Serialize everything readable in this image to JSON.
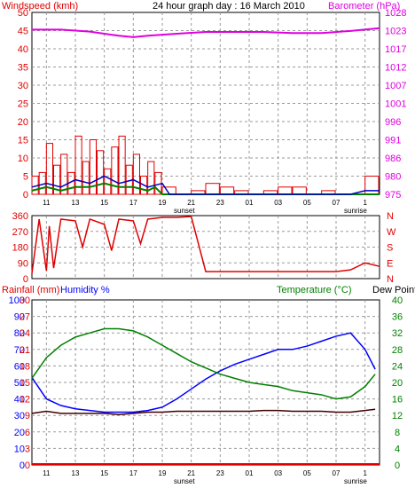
{
  "header": {
    "windspeed_label": "Windspeed (kmh)",
    "title": "24 hour graph day : 16 March 2010",
    "barometer_label": "Barometer (hPa)"
  },
  "lower_header": {
    "rainfall_label": "Rainfall (mm)",
    "humidity_label": "Humidity %",
    "temperature_label": "Temperature (°C)",
    "dewpoint_label": "Dew Point"
  },
  "x_ticks": [
    "11",
    "13",
    "15",
    "17",
    "19",
    "21",
    "23",
    "01",
    "03",
    "05",
    "07",
    "1"
  ],
  "markers": {
    "sunset": "sunset",
    "sunrise": "sunrise"
  },
  "colors": {
    "wind": "#e00000",
    "barometer": "#e000e0",
    "gust_bars": "#e00000",
    "avg_wind": "#0000c0",
    "green": "#008000",
    "humidity": "#0000ff",
    "temperature": "#008000",
    "dewpoint": "#400000",
    "grid": "#9a9a9a"
  },
  "chart_data": [
    {
      "type": "bar",
      "name": "wind",
      "title": "24 hour graph day : 16 March 2010",
      "ylabel": "Windspeed (kmh)",
      "ylabel_right": "Barometer (hPa)",
      "y_ticks": [
        "0",
        "5",
        "10",
        "15",
        "20",
        "25",
        "30",
        "35",
        "40",
        "45",
        "50"
      ],
      "y_ticks_right": [
        "975",
        "980",
        "986",
        "991",
        "996",
        "1001",
        "1007",
        "1012",
        "1017",
        "1023",
        "1028"
      ],
      "ylim": [
        0,
        50
      ],
      "ylim_right": [
        975,
        1028
      ],
      "grid": true,
      "x_hours": [
        10,
        11,
        12,
        13,
        14,
        15,
        16,
        17,
        18,
        19,
        20,
        21,
        22,
        23,
        24,
        25,
        26,
        27,
        28,
        29,
        30,
        31,
        32,
        33,
        34
      ],
      "series": [
        {
          "name": "Barometer (hPa)",
          "axis": "right",
          "x": [
            10,
            12,
            14,
            16,
            17,
            18,
            20,
            22,
            24,
            26,
            28,
            30,
            32,
            34
          ],
          "values": [
            1023.0,
            1023.0,
            1022.4,
            1021.2,
            1020.8,
            1021.2,
            1021.8,
            1022.3,
            1022.3,
            1022.3,
            1022.0,
            1022.0,
            1022.6,
            1023.4
          ]
        },
        {
          "name": "gust",
          "axis": "left",
          "x": [
            10,
            10.5,
            11,
            11.5,
            12,
            12.5,
            13,
            13.5,
            14,
            14.5,
            15,
            15.5,
            16,
            16.5,
            17,
            17.5,
            18,
            18.5,
            19,
            20,
            21,
            22,
            23,
            24,
            25,
            26,
            27,
            28,
            29,
            30,
            31,
            32,
            33,
            34
          ],
          "values": [
            5,
            6,
            14,
            8,
            11,
            6,
            16,
            9,
            15,
            12,
            7,
            13,
            16,
            8,
            11,
            5,
            9,
            6,
            2,
            0,
            1,
            3,
            2,
            1,
            0,
            1,
            2,
            2,
            0,
            1,
            0,
            0,
            5,
            6
          ]
        },
        {
          "name": "average",
          "axis": "left",
          "x": [
            10,
            11,
            12,
            13,
            14,
            15,
            16,
            17,
            18,
            19,
            19.5,
            20,
            24,
            28,
            32,
            33,
            34
          ],
          "values": [
            2,
            3,
            2,
            4,
            3,
            5,
            3,
            4,
            2,
            3,
            0,
            0,
            0,
            0,
            0,
            1,
            1
          ]
        },
        {
          "name": "green",
          "axis": "left",
          "x": [
            10,
            11,
            12,
            13,
            14,
            15,
            16,
            17,
            18,
            18.5,
            19,
            20,
            34
          ],
          "values": [
            1,
            2,
            1,
            2,
            2,
            3,
            2,
            2,
            1,
            2,
            0,
            0,
            0
          ]
        }
      ]
    },
    {
      "type": "line",
      "name": "wind direction",
      "ylim": [
        0,
        360
      ],
      "y_ticks": [
        "0",
        "90",
        "180",
        "270",
        "360"
      ],
      "y_ticks_right": [
        "N",
        "E",
        "S",
        "W",
        "N"
      ],
      "grid": true,
      "x": [
        10,
        10.5,
        11,
        11.2,
        11.5,
        12,
        13,
        13.5,
        14,
        15,
        15.5,
        16,
        17,
        17.5,
        18,
        19,
        20,
        21,
        22,
        25,
        28,
        30,
        31,
        32,
        33,
        34
      ],
      "values": [
        30,
        340,
        45,
        300,
        60,
        340,
        330,
        180,
        340,
        310,
        160,
        340,
        330,
        200,
        340,
        350,
        350,
        355,
        40,
        40,
        40,
        40,
        40,
        50,
        90,
        70
      ]
    },
    {
      "type": "line",
      "name": "temperature humidity",
      "ylabel": "Rainfall (mm)  Humidity %",
      "ylabel_right": "Temperature (°C) Dew Point",
      "rain_ticks": [
        "0",
        "3",
        "6",
        "9",
        "12",
        "15",
        "18",
        "21",
        "24",
        "27",
        "30"
      ],
      "humidity_ticks": [
        "0",
        "10",
        "20",
        "30",
        "40",
        "50",
        "60",
        "70",
        "80",
        "90",
        "100"
      ],
      "y_ticks_right": [
        "0",
        "4",
        "8",
        "12",
        "16",
        "20",
        "24",
        "28",
        "32",
        "36",
        "40"
      ],
      "ylim_right": [
        0,
        40
      ],
      "grid": true,
      "series": [
        {
          "name": "Temperature (°C)",
          "x": [
            10,
            11,
            12,
            13,
            14,
            15,
            16,
            17,
            18,
            19,
            20,
            21,
            22,
            23,
            24,
            25,
            26,
            27,
            28,
            29,
            30,
            31,
            32,
            33,
            33.7
          ],
          "values": [
            21,
            26,
            29,
            31,
            32,
            33,
            33,
            32.5,
            31,
            29,
            27,
            25,
            23.5,
            22,
            21,
            20,
            19.5,
            19,
            18,
            17.5,
            17,
            16,
            16.5,
            19,
            22
          ]
        },
        {
          "name": "Humidity %",
          "x": [
            10,
            11,
            12,
            13,
            14,
            15,
            16,
            17,
            18,
            19,
            20,
            21,
            22,
            23,
            24,
            25,
            26,
            27,
            28,
            29,
            30,
            31,
            32,
            33,
            33.7
          ],
          "values": [
            53,
            40,
            36,
            34,
            33,
            32,
            32,
            32,
            33,
            35,
            40,
            46,
            52,
            57,
            61,
            64,
            67,
            70,
            70,
            72,
            75,
            78,
            80,
            70,
            58
          ]
        },
        {
          "name": "Dew Point",
          "x": [
            10,
            11,
            12,
            13,
            14,
            15,
            16,
            17,
            18,
            19,
            20,
            21,
            22,
            23,
            24,
            25,
            26,
            27,
            28,
            29,
            30,
            31,
            32,
            33,
            33.7
          ],
          "values": [
            12.5,
            13,
            12.5,
            12.5,
            12.5,
            12.5,
            12.2,
            12.5,
            12.8,
            12.8,
            13,
            13,
            13,
            13,
            13,
            13,
            13.2,
            13.2,
            13,
            13,
            13,
            12.8,
            12.8,
            13.2,
            13.5
          ]
        },
        {
          "name": "Rainfall (mm)",
          "x": [
            10,
            34
          ],
          "values": [
            0,
            0
          ]
        }
      ]
    }
  ]
}
